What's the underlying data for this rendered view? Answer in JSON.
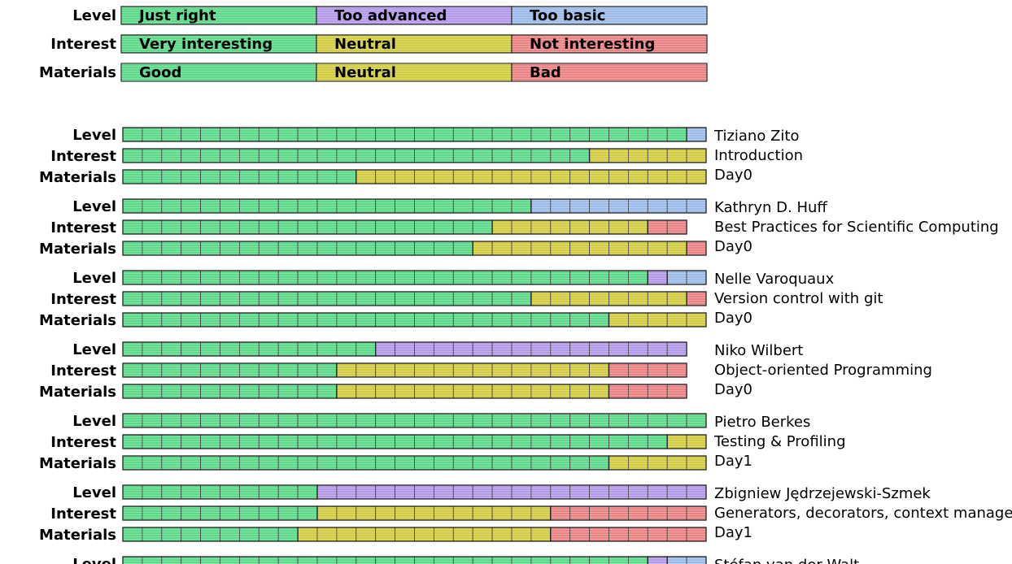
{
  "colors": {
    "just_right": "#5fd98a",
    "too_advanced": "#b39be8",
    "too_basic": "#9dbde8",
    "very_interesting": "#5fd98a",
    "neutral": "#d2cd45",
    "not_interesting": "#eb8585",
    "good": "#5fd98a",
    "bad": "#eb8585"
  },
  "legend": [
    {
      "label": "Level",
      "entries": [
        {
          "text": "Just right",
          "color": "just_right"
        },
        {
          "text": "Too advanced",
          "color": "too_advanced"
        },
        {
          "text": "Too basic",
          "color": "too_basic"
        }
      ]
    },
    {
      "label": "Interest",
      "entries": [
        {
          "text": "Very interesting",
          "color": "very_interesting"
        },
        {
          "text": "Neutral",
          "color": "neutral"
        },
        {
          "text": "Not interesting",
          "color": "not_interesting"
        }
      ]
    },
    {
      "label": "Materials",
      "entries": [
        {
          "text": "Good",
          "color": "good"
        },
        {
          "text": "Neutral",
          "color": "neutral"
        },
        {
          "text": "Bad",
          "color": "bad"
        }
      ]
    }
  ],
  "chart_data": {
    "type": "bar",
    "orientation": "horizontal",
    "stacked": true,
    "row_labels": [
      "Level",
      "Interest",
      "Materials"
    ],
    "lectures": [
      {
        "speaker": "Tiziano Zito",
        "title": "Introduction",
        "day": "Day0",
        "rows": [
          {
            "label": "Level",
            "segments": [
              {
                "category": "Just right",
                "color": "just_right",
                "count": 29
              },
              {
                "category": "Too basic",
                "color": "too_basic",
                "count": 1
              }
            ]
          },
          {
            "label": "Interest",
            "segments": [
              {
                "category": "Very interesting",
                "color": "very_interesting",
                "count": 24
              },
              {
                "category": "Neutral",
                "color": "neutral",
                "count": 6
              }
            ]
          },
          {
            "label": "Materials",
            "segments": [
              {
                "category": "Good",
                "color": "good",
                "count": 12
              },
              {
                "category": "Neutral",
                "color": "neutral",
                "count": 18
              }
            ]
          }
        ]
      },
      {
        "speaker": "Kathryn D. Huff",
        "title": "Best Practices for Scientific Computing",
        "day": "Day0",
        "rows": [
          {
            "label": "Level",
            "segments": [
              {
                "category": "Just right",
                "color": "just_right",
                "count": 21
              },
              {
                "category": "Too basic",
                "color": "too_basic",
                "count": 9
              }
            ]
          },
          {
            "label": "Interest",
            "segments": [
              {
                "category": "Very interesting",
                "color": "very_interesting",
                "count": 19
              },
              {
                "category": "Neutral",
                "color": "neutral",
                "count": 8
              },
              {
                "category": "Not interesting",
                "color": "not_interesting",
                "count": 2
              }
            ]
          },
          {
            "label": "Materials",
            "segments": [
              {
                "category": "Good",
                "color": "good",
                "count": 18
              },
              {
                "category": "Neutral",
                "color": "neutral",
                "count": 11
              },
              {
                "category": "Bad",
                "color": "bad",
                "count": 1
              }
            ]
          }
        ]
      },
      {
        "speaker": "Nelle Varoquaux",
        "title": "Version control with git",
        "day": "Day0",
        "rows": [
          {
            "label": "Level",
            "segments": [
              {
                "category": "Just right",
                "color": "just_right",
                "count": 27
              },
              {
                "category": "Too advanced",
                "color": "too_advanced",
                "count": 1
              },
              {
                "category": "Too basic",
                "color": "too_basic",
                "count": 2
              }
            ]
          },
          {
            "label": "Interest",
            "segments": [
              {
                "category": "Very interesting",
                "color": "very_interesting",
                "count": 21
              },
              {
                "category": "Neutral",
                "color": "neutral",
                "count": 8
              },
              {
                "category": "Not interesting",
                "color": "not_interesting",
                "count": 1
              }
            ]
          },
          {
            "label": "Materials",
            "segments": [
              {
                "category": "Good",
                "color": "good",
                "count": 25
              },
              {
                "category": "Neutral",
                "color": "neutral",
                "count": 5
              }
            ]
          }
        ]
      },
      {
        "speaker": "Niko Wilbert",
        "title": "Object-oriented Programming",
        "day": "Day0",
        "rows": [
          {
            "label": "Level",
            "segments": [
              {
                "category": "Just right",
                "color": "just_right",
                "count": 13
              },
              {
                "category": "Too advanced",
                "color": "too_advanced",
                "count": 16
              }
            ]
          },
          {
            "label": "Interest",
            "segments": [
              {
                "category": "Very interesting",
                "color": "very_interesting",
                "count": 11
              },
              {
                "category": "Neutral",
                "color": "neutral",
                "count": 14
              },
              {
                "category": "Not interesting",
                "color": "not_interesting",
                "count": 4
              }
            ]
          },
          {
            "label": "Materials",
            "segments": [
              {
                "category": "Good",
                "color": "good",
                "count": 11
              },
              {
                "category": "Neutral",
                "color": "neutral",
                "count": 14
              },
              {
                "category": "Bad",
                "color": "bad",
                "count": 4
              }
            ]
          }
        ]
      },
      {
        "speaker": "Pietro Berkes",
        "title": "Testing & Profiling",
        "day": "Day1",
        "rows": [
          {
            "label": "Level",
            "segments": [
              {
                "category": "Just right",
                "color": "just_right",
                "count": 30
              }
            ]
          },
          {
            "label": "Interest",
            "segments": [
              {
                "category": "Very interesting",
                "color": "very_interesting",
                "count": 28
              },
              {
                "category": "Neutral",
                "color": "neutral",
                "count": 2
              }
            ]
          },
          {
            "label": "Materials",
            "segments": [
              {
                "category": "Good",
                "color": "good",
                "count": 25
              },
              {
                "category": "Neutral",
                "color": "neutral",
                "count": 5
              }
            ]
          }
        ]
      },
      {
        "speaker": "Zbigniew Jędrzejewski-Szmek",
        "title": "Generators, decorators, context managers",
        "day": "Day1",
        "rows": [
          {
            "label": "Level",
            "segments": [
              {
                "category": "Just right",
                "color": "just_right",
                "count": 10
              },
              {
                "category": "Too advanced",
                "color": "too_advanced",
                "count": 20
              }
            ]
          },
          {
            "label": "Interest",
            "segments": [
              {
                "category": "Very interesting",
                "color": "very_interesting",
                "count": 10
              },
              {
                "category": "Neutral",
                "color": "neutral",
                "count": 12
              },
              {
                "category": "Not interesting",
                "color": "not_interesting",
                "count": 8
              }
            ]
          },
          {
            "label": "Materials",
            "segments": [
              {
                "category": "Good",
                "color": "good",
                "count": 9
              },
              {
                "category": "Neutral",
                "color": "neutral",
                "count": 13
              },
              {
                "category": "Bad",
                "color": "bad",
                "count": 8
              }
            ]
          }
        ]
      },
      {
        "speaker": "Stéfan van der Walt",
        "title": "",
        "day": "",
        "rows": [
          {
            "label": "Level",
            "segments": [
              {
                "category": "Just right",
                "color": "just_right",
                "count": 27
              },
              {
                "category": "Too advanced",
                "color": "too_advanced",
                "count": 1
              },
              {
                "category": "Too basic",
                "color": "too_basic",
                "count": 2
              }
            ]
          }
        ]
      }
    ]
  }
}
